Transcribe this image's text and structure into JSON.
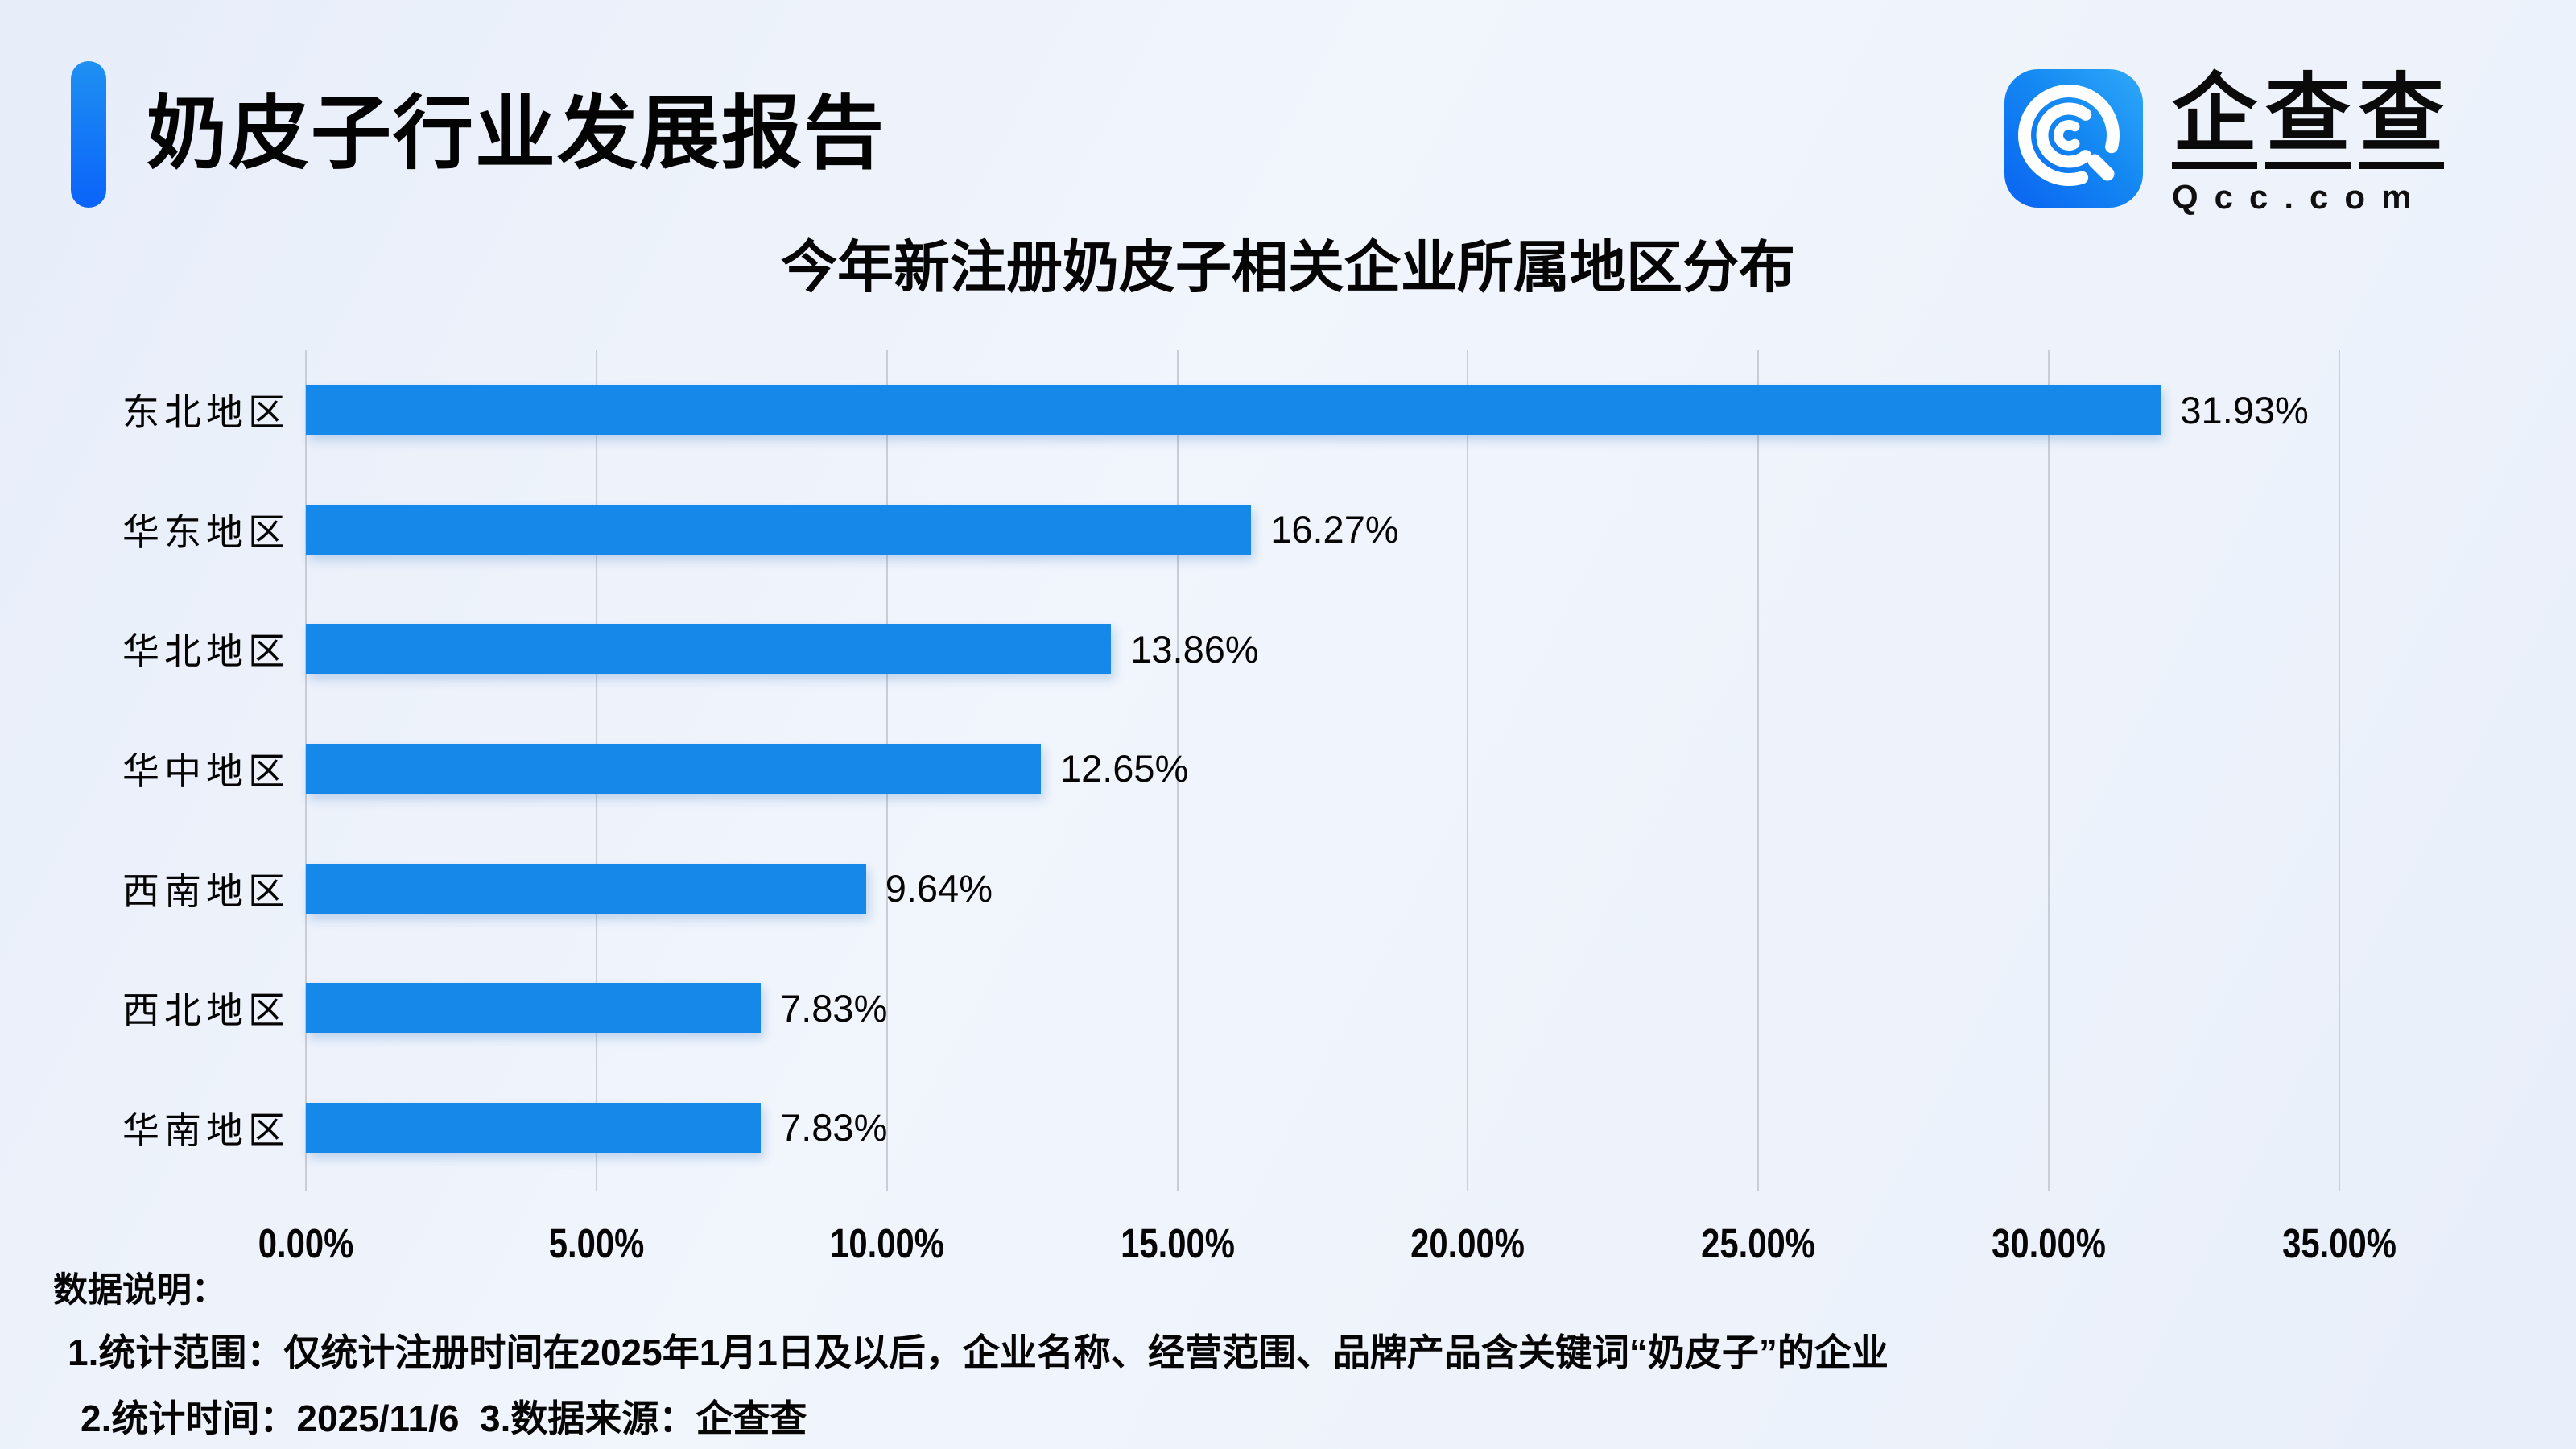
{
  "page": {
    "title": "奶皮子行业发展报告"
  },
  "logo": {
    "icon": "qcc-spiral-icon",
    "brand_cn": "企查查",
    "brand_chars": [
      "企",
      "查",
      "查"
    ],
    "brand_domain": "Qcc.com"
  },
  "chart_data": {
    "type": "bar",
    "orientation": "horizontal",
    "title": "今年新注册奶皮子相关企业所属地区分布",
    "xlabel": "",
    "ylabel": "",
    "categories": [
      "东北地区",
      "华东地区",
      "华北地区",
      "华中地区",
      "西南地区",
      "西北地区",
      "华南地区"
    ],
    "values": [
      31.93,
      16.27,
      13.86,
      12.65,
      9.64,
      7.83,
      7.83
    ],
    "value_labels": [
      "31.93%",
      "16.27%",
      "13.86%",
      "12.65%",
      "9.64%",
      "7.83%",
      "7.83%"
    ],
    "xlim": [
      0,
      35
    ],
    "x_ticks": [
      "0.00%",
      "5.00%",
      "10.00%",
      "15.00%",
      "20.00%",
      "25.00%",
      "30.00%",
      "35.00%"
    ],
    "grid": true,
    "legend": "none"
  },
  "notes": {
    "heading": "数据说明：",
    "line1": "1.统计范围：仅统计注册时间在2025年1月1日及以后，企业名称、经营范围、品牌产品含关键词“奶皮子”的企业",
    "line2": "2.统计时间：2025/11/6  3.数据来源：企查查"
  },
  "colors": {
    "bar": "#1588ea",
    "accent_top": "#1f90f2",
    "accent_bottom": "#0a63fa",
    "gridline": "#c9cdd6",
    "logo_gradient_start": "#0a63f1",
    "logo_gradient_end": "#2fa9f9"
  }
}
